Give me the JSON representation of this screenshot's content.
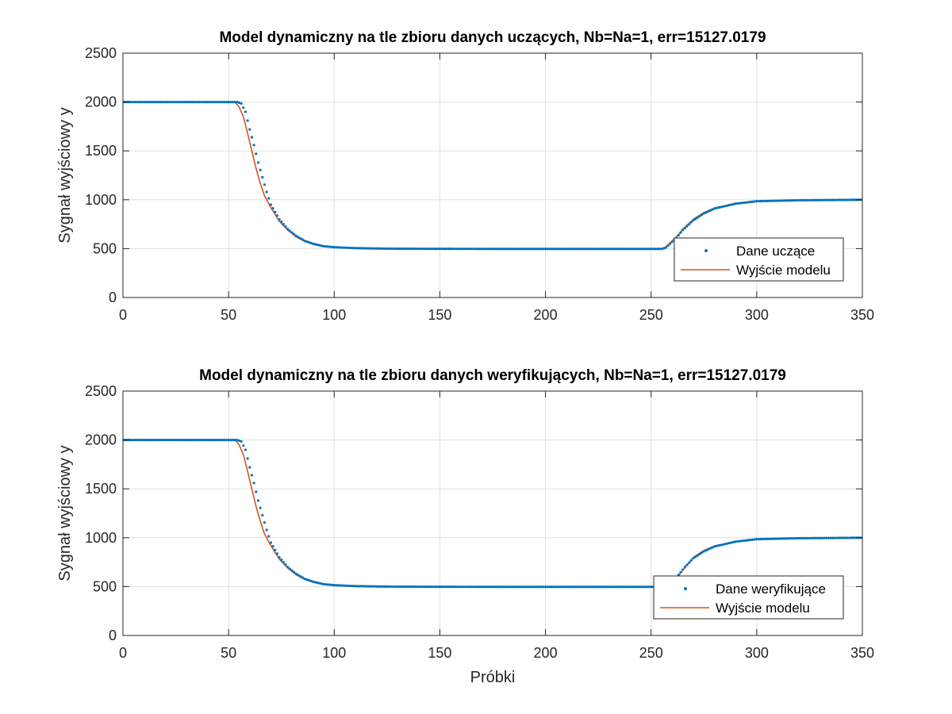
{
  "chart_data": [
    {
      "type": "line",
      "title": "Model dynamiczny na tle zbioru danych uczących, Nb=Na=1, err=15127.0179",
      "xlabel": "",
      "ylabel": "Sygnał wyjściowy y",
      "xlim": [
        0,
        350
      ],
      "ylim": [
        0,
        2500
      ],
      "xticks": [
        0,
        50,
        100,
        150,
        200,
        250,
        300,
        350
      ],
      "yticks": [
        0,
        500,
        1000,
        1500,
        2000,
        2500
      ],
      "grid": true,
      "legend_position": "bottom-right",
      "series": [
        {
          "name": "Dane uczące",
          "style": "markers",
          "color": "#0072BD",
          "points": [
            [
              0,
              2000
            ],
            [
              20,
              2000
            ],
            [
              40,
              2000
            ],
            [
              54,
              2000
            ],
            [
              56,
              1985
            ],
            [
              58,
              1900
            ],
            [
              60,
              1720
            ],
            [
              62,
              1560
            ],
            [
              64,
              1380
            ],
            [
              66,
              1230
            ],
            [
              68,
              1080
            ],
            [
              70,
              950
            ],
            [
              74,
              800
            ],
            [
              78,
              700
            ],
            [
              82,
              630
            ],
            [
              86,
              580
            ],
            [
              90,
              550
            ],
            [
              95,
              525
            ],
            [
              100,
              515
            ],
            [
              110,
              505
            ],
            [
              125,
              500
            ],
            [
              150,
              498
            ],
            [
              200,
              497
            ],
            [
              250,
              497
            ],
            [
              255,
              497
            ],
            [
              257,
              510
            ],
            [
              259,
              550
            ],
            [
              262,
              610
            ],
            [
              265,
              690
            ],
            [
              270,
              790
            ],
            [
              275,
              860
            ],
            [
              280,
              910
            ],
            [
              290,
              960
            ],
            [
              300,
              985
            ],
            [
              320,
              995
            ],
            [
              350,
              1000
            ]
          ]
        },
        {
          "name": "Wyjście modelu",
          "style": "line",
          "color": "#D95319",
          "points": [
            [
              0,
              2000
            ],
            [
              20,
              2000
            ],
            [
              40,
              2000
            ],
            [
              53,
              2000
            ],
            [
              55,
              1950
            ],
            [
              57,
              1850
            ],
            [
              59,
              1680
            ],
            [
              61,
              1500
            ],
            [
              63,
              1320
            ],
            [
              65,
              1170
            ],
            [
              67,
              1040
            ],
            [
              70,
              920
            ],
            [
              74,
              780
            ],
            [
              78,
              690
            ],
            [
              82,
              620
            ],
            [
              86,
              575
            ],
            [
              90,
              545
            ],
            [
              95,
              522
            ],
            [
              100,
              512
            ],
            [
              110,
              503
            ],
            [
              125,
              499
            ],
            [
              150,
              497
            ],
            [
              200,
              496
            ],
            [
              250,
              496
            ],
            [
              255,
              496
            ],
            [
              257,
              520
            ],
            [
              259,
              560
            ],
            [
              262,
              620
            ],
            [
              265,
              700
            ],
            [
              270,
              800
            ],
            [
              275,
              870
            ],
            [
              280,
              915
            ],
            [
              290,
              962
            ],
            [
              300,
              985
            ],
            [
              320,
              996
            ],
            [
              350,
              1000
            ]
          ]
        }
      ]
    },
    {
      "type": "line",
      "title": "Model dynamiczny na tle zbioru danych weryfikujących, Nb=Na=1, err=15127.0179",
      "xlabel": "Próbki",
      "ylabel": "Sygnał wyjściowy y",
      "xlim": [
        0,
        350
      ],
      "ylim": [
        0,
        2500
      ],
      "xticks": [
        0,
        50,
        100,
        150,
        200,
        250,
        300,
        350
      ],
      "yticks": [
        0,
        500,
        1000,
        1500,
        2000,
        2500
      ],
      "grid": true,
      "legend_position": "bottom-right",
      "series": [
        {
          "name": "Dane weryfikujące",
          "style": "markers",
          "color": "#0072BD",
          "points": [
            [
              0,
              2000
            ],
            [
              20,
              2000
            ],
            [
              40,
              2000
            ],
            [
              54,
              2000
            ],
            [
              56,
              1985
            ],
            [
              58,
              1900
            ],
            [
              60,
              1720
            ],
            [
              62,
              1560
            ],
            [
              64,
              1380
            ],
            [
              66,
              1230
            ],
            [
              68,
              1080
            ],
            [
              70,
              950
            ],
            [
              74,
              800
            ],
            [
              78,
              700
            ],
            [
              82,
              630
            ],
            [
              86,
              580
            ],
            [
              90,
              550
            ],
            [
              95,
              525
            ],
            [
              100,
              515
            ],
            [
              110,
              505
            ],
            [
              125,
              500
            ],
            [
              150,
              498
            ],
            [
              200,
              497
            ],
            [
              250,
              497
            ],
            [
              256,
              497
            ],
            [
              258,
              505
            ],
            [
              260,
              540
            ],
            [
              263,
              620
            ],
            [
              266,
              700
            ],
            [
              270,
              790
            ],
            [
              275,
              860
            ],
            [
              280,
              910
            ],
            [
              290,
              960
            ],
            [
              300,
              985
            ],
            [
              320,
              995
            ],
            [
              350,
              1000
            ]
          ]
        },
        {
          "name": "Wyjście modelu",
          "style": "line",
          "color": "#D95319",
          "points": [
            [
              0,
              2000
            ],
            [
              20,
              2000
            ],
            [
              40,
              2000
            ],
            [
              53,
              2000
            ],
            [
              55,
              1950
            ],
            [
              57,
              1850
            ],
            [
              59,
              1680
            ],
            [
              61,
              1500
            ],
            [
              63,
              1320
            ],
            [
              65,
              1170
            ],
            [
              67,
              1040
            ],
            [
              70,
              920
            ],
            [
              74,
              780
            ],
            [
              78,
              690
            ],
            [
              82,
              620
            ],
            [
              86,
              575
            ],
            [
              90,
              545
            ],
            [
              95,
              522
            ],
            [
              100,
              512
            ],
            [
              110,
              503
            ],
            [
              125,
              499
            ],
            [
              150,
              497
            ],
            [
              200,
              496
            ],
            [
              250,
              496
            ],
            [
              257,
              496
            ],
            [
              259,
              510
            ],
            [
              261,
              560
            ],
            [
              264,
              640
            ],
            [
              267,
              720
            ],
            [
              270,
              800
            ],
            [
              275,
              870
            ],
            [
              280,
              915
            ],
            [
              290,
              962
            ],
            [
              300,
              985
            ],
            [
              320,
              996
            ],
            [
              350,
              1000
            ]
          ]
        }
      ]
    }
  ]
}
